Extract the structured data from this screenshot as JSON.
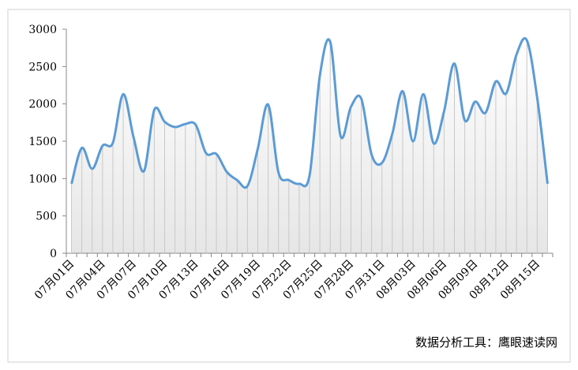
{
  "chart_data": {
    "type": "line",
    "categories": [
      "07月01日",
      null,
      null,
      "07月04日",
      null,
      null,
      "07月07日",
      null,
      null,
      "07月10日",
      null,
      null,
      "07月13日",
      null,
      null,
      "07月16日",
      null,
      null,
      "07月19日",
      null,
      null,
      "07月22日",
      null,
      null,
      "07月25日",
      null,
      null,
      "07月28日",
      null,
      null,
      "07月31日",
      null,
      null,
      "08月03日",
      null,
      null,
      "08月06日",
      null,
      null,
      "08月09日",
      null,
      null,
      "08月12日",
      null,
      null,
      "08月15日",
      null
    ],
    "series": [
      {
        "color": "#5b9bd5",
        "values": [
          930,
          1410,
          1130,
          1440,
          1480,
          2130,
          1550,
          1100,
          1920,
          1760,
          1690,
          1730,
          1720,
          1340,
          1330,
          1090,
          980,
          900,
          1400,
          1990,
          1080,
          980,
          930,
          1040,
          2380,
          2830,
          1570,
          1960,
          2070,
          1320,
          1210,
          1600,
          2170,
          1500,
          2130,
          1470,
          1900,
          2540,
          1780,
          2030,
          1880,
          2300,
          2140,
          2660,
          2850,
          2080,
          930
        ]
      }
    ],
    "ylim": [
      0,
      3000
    ],
    "yticks": [
      0,
      500,
      1000,
      1500,
      2000,
      2500,
      3000
    ],
    "note": "数据分析工具：鹰眼速读网"
  }
}
